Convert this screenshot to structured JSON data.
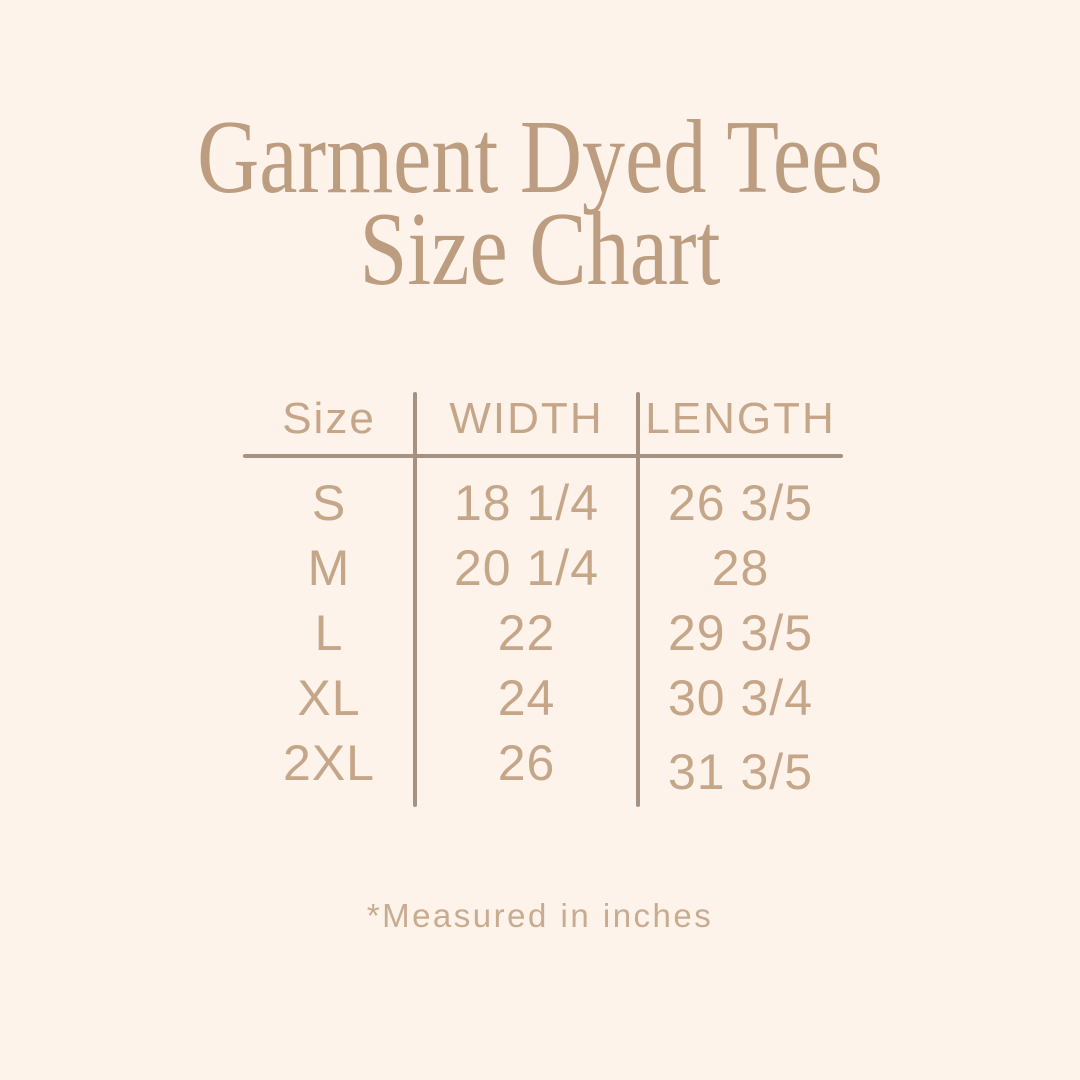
{
  "title": {
    "line1": "Garment Dyed Tees",
    "line2": "Size Chart"
  },
  "table": {
    "headers": [
      "Size",
      "WIDTH",
      "LENGTH"
    ],
    "rows": [
      {
        "size": "S",
        "width": "18 1/4",
        "length": "26 3/5"
      },
      {
        "size": "M",
        "width": "20 1/4",
        "length": "28"
      },
      {
        "size": "L",
        "width": "22",
        "length": "29 3/5"
      },
      {
        "size": "XL",
        "width": "24",
        "length": "30 3/4"
      },
      {
        "size": "2XL",
        "width": "26",
        "length": "31 3/5"
      }
    ]
  },
  "footer": {
    "note": "*Measured in inches"
  },
  "colors": {
    "background": "#fdf3ea",
    "title": "#bd9d80",
    "table_text": "#c5a689",
    "line": "#a69283",
    "footnote": "#c9ab90"
  },
  "chart_data": {
    "type": "table",
    "title": "Garment Dyed Tees Size Chart",
    "columns": [
      "Size",
      "WIDTH",
      "LENGTH"
    ],
    "rows": [
      [
        "S",
        "18 1/4",
        "26 3/5"
      ],
      [
        "M",
        "20 1/4",
        "28"
      ],
      [
        "L",
        "22",
        "29 3/5"
      ],
      [
        "XL",
        "24",
        "30 3/4"
      ],
      [
        "2XL",
        "26",
        "31 3/5"
      ]
    ],
    "units": "inches"
  }
}
